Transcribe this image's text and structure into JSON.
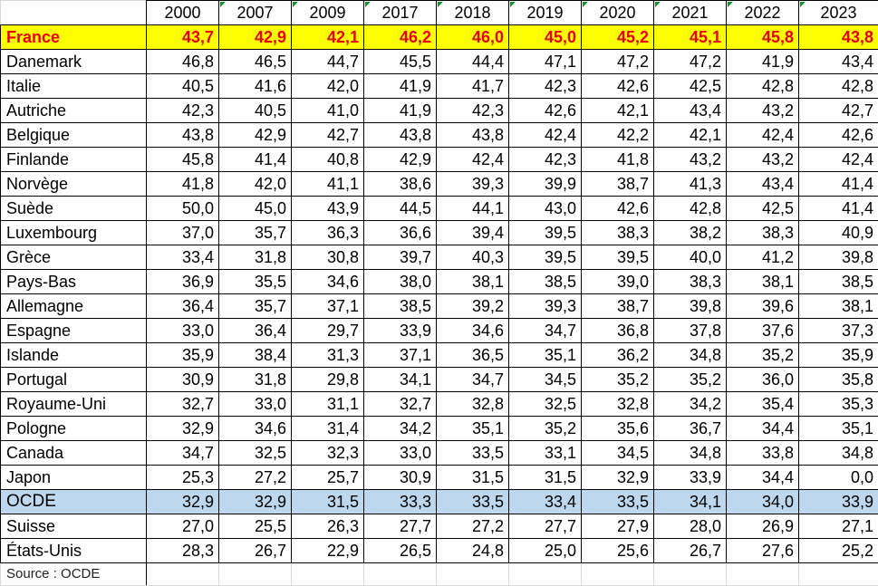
{
  "years": [
    "2000",
    "2007",
    "2009",
    "2017",
    "2018",
    "2019",
    "2020",
    "2021",
    "2022",
    "2023"
  ],
  "rows": [
    {
      "country": "France",
      "values": [
        "43,7",
        "42,9",
        "42,1",
        "46,2",
        "46,0",
        "45,0",
        "45,2",
        "45,1",
        "45,8",
        "43,8"
      ],
      "highlight": "france"
    },
    {
      "country": "Danemark",
      "values": [
        "46,8",
        "46,5",
        "44,7",
        "45,5",
        "44,4",
        "47,1",
        "47,2",
        "47,2",
        "41,9",
        "43,4"
      ]
    },
    {
      "country": "Italie",
      "values": [
        "40,5",
        "41,6",
        "42,0",
        "41,9",
        "41,7",
        "42,3",
        "42,6",
        "42,5",
        "42,8",
        "42,8"
      ]
    },
    {
      "country": "Autriche",
      "values": [
        "42,3",
        "40,5",
        "41,0",
        "41,9",
        "42,3",
        "42,6",
        "42,1",
        "43,4",
        "43,2",
        "42,7"
      ]
    },
    {
      "country": "Belgique",
      "values": [
        "43,8",
        "42,9",
        "42,7",
        "43,8",
        "43,8",
        "42,4",
        "42,2",
        "42,1",
        "42,4",
        "42,6"
      ]
    },
    {
      "country": "Finlande",
      "values": [
        "45,8",
        "41,4",
        "40,8",
        "42,9",
        "42,4",
        "42,3",
        "41,8",
        "43,2",
        "43,2",
        "42,4"
      ]
    },
    {
      "country": "Norvège",
      "values": [
        "41,8",
        "42,0",
        "41,1",
        "38,6",
        "39,3",
        "39,9",
        "38,7",
        "41,3",
        "43,4",
        "41,4"
      ]
    },
    {
      "country": "Suède",
      "values": [
        "50,0",
        "45,0",
        "43,9",
        "44,5",
        "44,1",
        "43,0",
        "42,6",
        "42,8",
        "42,5",
        "41,4"
      ]
    },
    {
      "country": "Luxembourg",
      "values": [
        "37,0",
        "35,7",
        "36,3",
        "36,6",
        "39,4",
        "39,5",
        "38,3",
        "38,2",
        "38,3",
        "40,9"
      ]
    },
    {
      "country": "Grèce",
      "values": [
        "33,4",
        "31,8",
        "30,8",
        "39,7",
        "40,3",
        "39,5",
        "39,5",
        "40,0",
        "41,2",
        "39,8"
      ]
    },
    {
      "country": "Pays-Bas",
      "values": [
        "36,9",
        "35,5",
        "34,6",
        "38,0",
        "38,1",
        "38,5",
        "39,0",
        "38,3",
        "38,1",
        "38,5"
      ]
    },
    {
      "country": "Allemagne",
      "values": [
        "36,4",
        "35,7",
        "37,1",
        "38,5",
        "39,2",
        "39,3",
        "38,7",
        "39,8",
        "39,6",
        "38,1"
      ]
    },
    {
      "country": "Espagne",
      "values": [
        "33,0",
        "36,4",
        "29,7",
        "33,9",
        "34,6",
        "34,7",
        "36,8",
        "37,8",
        "37,6",
        "37,3"
      ]
    },
    {
      "country": "Islande",
      "values": [
        "35,9",
        "38,4",
        "31,3",
        "37,1",
        "36,5",
        "35,1",
        "36,2",
        "34,8",
        "35,2",
        "35,9"
      ]
    },
    {
      "country": "Portugal",
      "values": [
        "30,9",
        "31,8",
        "29,8",
        "34,1",
        "34,7",
        "34,5",
        "35,2",
        "35,2",
        "36,0",
        "35,8"
      ]
    },
    {
      "country": "Royaume-Uni",
      "values": [
        "32,7",
        "33,0",
        "31,1",
        "32,7",
        "32,8",
        "32,5",
        "32,8",
        "34,2",
        "35,4",
        "35,3"
      ]
    },
    {
      "country": "Pologne",
      "values": [
        "32,9",
        "34,6",
        "31,4",
        "34,2",
        "35,1",
        "35,2",
        "35,6",
        "36,7",
        "34,4",
        "35,1"
      ]
    },
    {
      "country": "Canada",
      "values": [
        "34,7",
        "32,5",
        "32,3",
        "33,0",
        "33,5",
        "33,1",
        "34,5",
        "34,8",
        "33,8",
        "34,8"
      ]
    },
    {
      "country": "Japon",
      "values": [
        "25,3",
        "27,2",
        "25,7",
        "30,9",
        "31,5",
        "31,5",
        "32,9",
        "33,9",
        "34,4",
        "0,0"
      ]
    },
    {
      "country": "OCDE",
      "values": [
        "32,9",
        "32,9",
        "31,5",
        "33,3",
        "33,5",
        "33,4",
        "33,5",
        "34,1",
        "34,0",
        "33,9"
      ],
      "highlight": "oecd"
    },
    {
      "country": "Suisse",
      "values": [
        "27,0",
        "25,5",
        "26,3",
        "27,7",
        "27,2",
        "27,7",
        "27,9",
        "28,0",
        "26,9",
        "27,1"
      ]
    },
    {
      "country": "États-Unis",
      "values": [
        "28,3",
        "26,7",
        "22,9",
        "26,5",
        "24,8",
        "25,0",
        "25,6",
        "26,7",
        "27,6",
        "25,2"
      ]
    }
  ],
  "source": "Source : OCDE",
  "colors": {
    "france_bg": "#ffff00",
    "france_text": "#e60000",
    "oecd_bg": "#bdd7ee",
    "comment_marker": "#1a8f2a"
  }
}
